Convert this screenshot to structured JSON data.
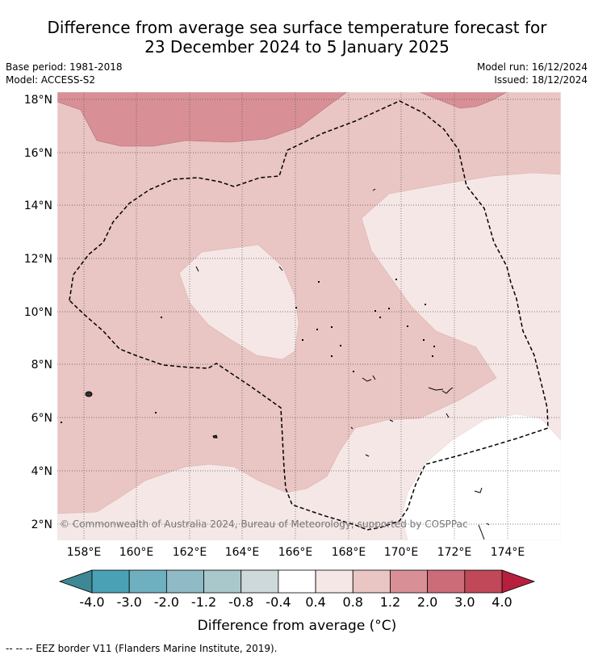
{
  "title": {
    "line1": "Difference from average sea surface temperature forecast for",
    "line2": "23 December 2024 to 5 January 2025"
  },
  "meta": {
    "base_period": "Base period: 1981-2018",
    "model": "Model: ACCESS-S2",
    "model_run": "Model run: 16/12/2024",
    "issued": "Issued: 18/12/2024"
  },
  "map": {
    "lat_labels": [
      "18°N",
      "16°N",
      "14°N",
      "12°N",
      "10°N",
      "8°N",
      "6°N",
      "4°N",
      "2°N"
    ],
    "lon_labels": [
      "158°E",
      "160°E",
      "162°E",
      "164°E",
      "166°E",
      "168°E",
      "170°E",
      "172°E",
      "174°E"
    ],
    "copyright": "© Commonwealth of Australia 2024, Bureau of Meteorology; supported by COSPPac"
  },
  "colorbar": {
    "ticks": [
      "-4.0",
      "-3.0",
      "-2.0",
      "-1.2",
      "-0.8",
      "-0.4",
      "0.4",
      "0.8",
      "1.2",
      "2.0",
      "3.0",
      "4.0"
    ],
    "colors": [
      "#4aa1b5",
      "#6fb0c0",
      "#8fbac6",
      "#a8c8cc",
      "#cdd9db",
      "#ffffff",
      "#f5e7e6",
      "#e9c5c3",
      "#d88f96",
      "#cd6c79",
      "#c04858"
    ],
    "under_color": "#3d8894",
    "over_color": "#b81f3e",
    "label": "Difference from average (°C)"
  },
  "legend_note": "--  --  -- EEZ border V11 (Flanders Marine Institute, 2019)."
}
